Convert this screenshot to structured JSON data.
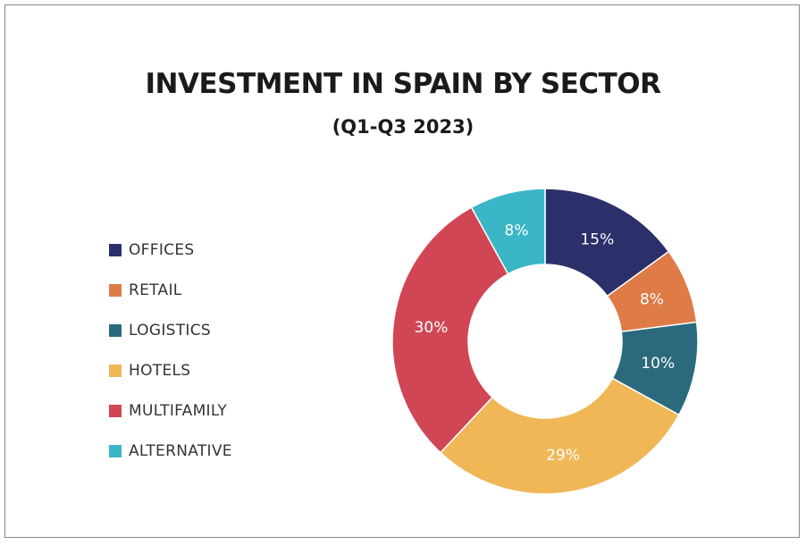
{
  "chart_data": {
    "type": "pie",
    "variant": "donut",
    "title": "INVESTMENT IN SPAIN BY SECTOR",
    "subtitle": "(Q1-Q3 2023)",
    "legend_position": "left",
    "categories": [
      "OFFICES",
      "RETAIL",
      "LOGISTICS",
      "HOTELS",
      "MULTIFAMILY",
      "ALTERNATIVE"
    ],
    "values": [
      15,
      8,
      10,
      29,
      30,
      8
    ],
    "labels": [
      "15%",
      "8%",
      "10%",
      "29%",
      "30%",
      "8%"
    ],
    "colors": [
      "#2b2f6a",
      "#de7b47",
      "#2b6a7d",
      "#f0b757",
      "#d14655",
      "#3ab6c6"
    ]
  }
}
